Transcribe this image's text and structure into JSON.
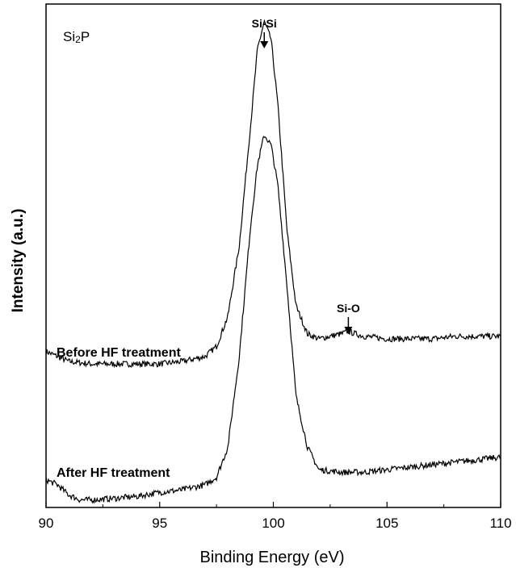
{
  "chart_data": {
    "type": "line",
    "title": "",
    "sample_label_main": "Si",
    "sample_label_sub": "2",
    "sample_label_end": "P",
    "xlabel": "Binding Energy (eV)",
    "ylabel": "Intensity (a.u.)",
    "xlim": [
      90,
      110
    ],
    "ylim": [
      0,
      1
    ],
    "x_ticks": [
      "90",
      "95",
      "100",
      "105",
      "110"
    ],
    "x_tick_values": [
      90,
      95,
      100,
      105,
      110
    ],
    "grid": false,
    "series": [
      {
        "name": "Before HF treatment",
        "x": [
          90,
          91,
          92,
          93,
          94,
          95,
          96,
          97,
          97.5,
          98,
          98.5,
          99,
          99.3,
          99.6,
          99.9,
          100.2,
          100.6,
          101,
          101.5,
          102,
          102.5,
          103,
          103.3,
          103.6,
          104,
          105,
          106,
          107,
          108,
          109,
          110
        ],
        "y": [
          0.31,
          0.29,
          0.285,
          0.285,
          0.285,
          0.285,
          0.29,
          0.3,
          0.32,
          0.38,
          0.52,
          0.76,
          0.91,
          0.965,
          0.93,
          0.8,
          0.55,
          0.4,
          0.345,
          0.335,
          0.34,
          0.345,
          0.35,
          0.345,
          0.34,
          0.335,
          0.335,
          0.335,
          0.34,
          0.34,
          0.34
        ]
      },
      {
        "name": "After HF treatment",
        "x": [
          90,
          90.5,
          91,
          91.5,
          92,
          93,
          94,
          95,
          96,
          97,
          97.5,
          98,
          98.5,
          99,
          99.3,
          99.6,
          99.9,
          100.2,
          100.6,
          101,
          101.5,
          102,
          103,
          104,
          105,
          106,
          107,
          108,
          109,
          110
        ],
        "y": [
          0.055,
          0.045,
          0.025,
          0.015,
          0.015,
          0.018,
          0.022,
          0.03,
          0.035,
          0.045,
          0.06,
          0.12,
          0.3,
          0.56,
          0.68,
          0.74,
          0.72,
          0.64,
          0.44,
          0.22,
          0.12,
          0.075,
          0.07,
          0.07,
          0.075,
          0.08,
          0.085,
          0.09,
          0.095,
          0.1
        ]
      }
    ],
    "annotations": [
      {
        "text": "Si-Si",
        "x": 99.6
      },
      {
        "text": "Si-O",
        "x": 103.3
      }
    ]
  }
}
